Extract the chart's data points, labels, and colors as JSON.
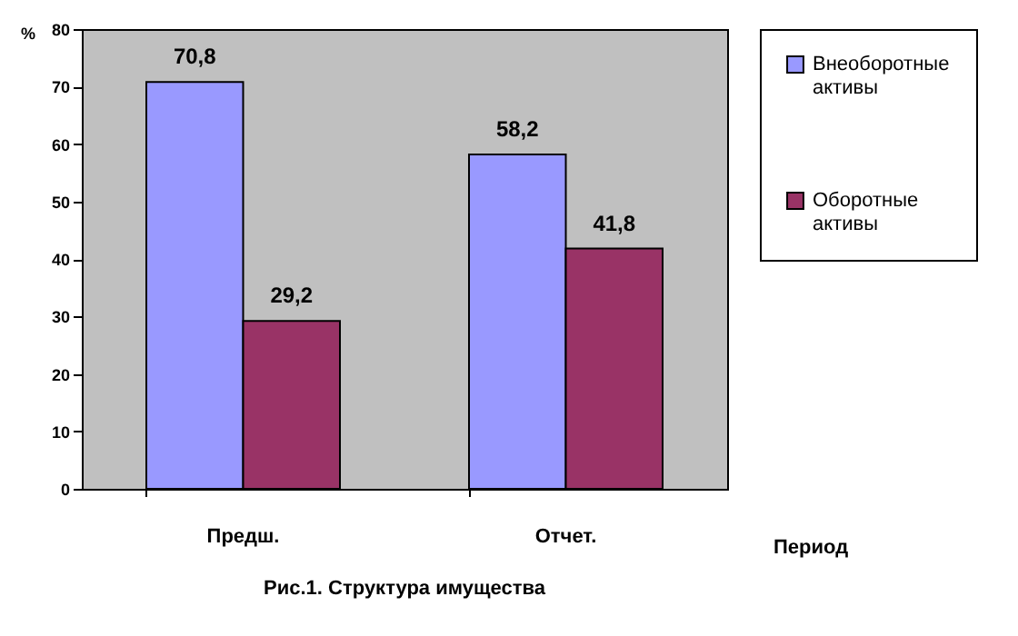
{
  "chart_data": {
    "type": "bar",
    "title": "Рис.1. Структура имущества",
    "xlabel": "Период",
    "ylabel": "%",
    "categories": [
      "Предш.",
      "Отчет."
    ],
    "series": [
      {
        "name": "Внеоборотные активы",
        "color": "#9999ff",
        "values": [
          70.8,
          58.2
        ],
        "value_labels": [
          "70,8",
          "58,2"
        ]
      },
      {
        "name": "Оборотные активы",
        "color": "#993366",
        "values": [
          29.2,
          41.8
        ],
        "value_labels": [
          "29,2",
          "41,8"
        ]
      }
    ],
    "ylim": [
      0,
      80
    ],
    "yticks": [
      0,
      10,
      20,
      30,
      40,
      50,
      60,
      70,
      80
    ],
    "legend": "right"
  }
}
